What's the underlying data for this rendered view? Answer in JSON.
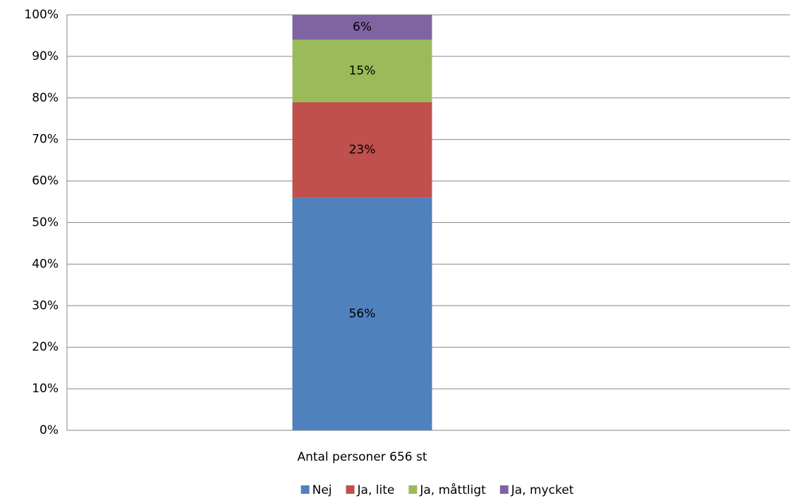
{
  "chart_data": {
    "type": "stacked_bar",
    "categories": [
      "Antal personer 656 st"
    ],
    "series": [
      {
        "name": "Nej",
        "color": "#4f81bd",
        "values": [
          56
        ],
        "value_labels": [
          "56%"
        ]
      },
      {
        "name": "Ja, lite",
        "color": "#c0504d",
        "values": [
          23
        ],
        "value_labels": [
          "23%"
        ]
      },
      {
        "name": "Ja, måttligt",
        "color": "#9bbb59",
        "values": [
          15
        ],
        "value_labels": [
          "15%"
        ]
      },
      {
        "name": "Ja, mycket",
        "color": "#8064a2",
        "values": [
          6
        ],
        "value_labels": [
          "6%"
        ]
      }
    ],
    "ylim": [
      0,
      100
    ],
    "yticks": [
      {
        "value": 0,
        "label": "0%"
      },
      {
        "value": 10,
        "label": "10%"
      },
      {
        "value": 20,
        "label": "20%"
      },
      {
        "value": 30,
        "label": "30%"
      },
      {
        "value": 40,
        "label": "40%"
      },
      {
        "value": 50,
        "label": "50%"
      },
      {
        "value": 60,
        "label": "60%"
      },
      {
        "value": 70,
        "label": "70%"
      },
      {
        "value": 80,
        "label": "80%"
      },
      {
        "value": 90,
        "label": "90%"
      },
      {
        "value": 100,
        "label": "100%"
      }
    ],
    "grid": true,
    "legend": "bottom"
  }
}
